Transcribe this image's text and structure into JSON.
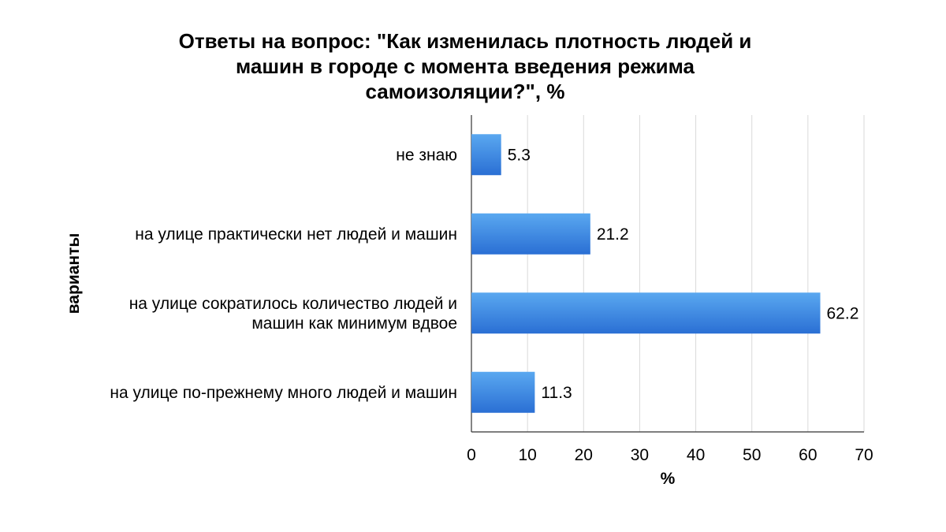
{
  "chart_data": {
    "type": "bar",
    "orientation": "horizontal",
    "title_lines": [
      "Ответы на вопрос: \"Как изменилась плотность людей и",
      "машин  в городе с момента введения режима",
      "самоизоляции?\", %"
    ],
    "categories": [
      [
        "не знаю"
      ],
      [
        "на улице практически нет людей и машин"
      ],
      [
        "на улице сократилось количество людей и",
        "машин как минимум вдвое"
      ],
      [
        "на улице по-прежнему много людей и машин"
      ]
    ],
    "values": [
      5.3,
      21.2,
      62.2,
      11.3
    ],
    "value_labels": [
      "5.3",
      "21.2",
      "62.2",
      "11.3"
    ],
    "xlabel": "%",
    "ylabel": "варианты",
    "xlim": [
      0,
      70
    ],
    "x_ticks": [
      0,
      10,
      20,
      30,
      40,
      50,
      60,
      70
    ],
    "grid": true,
    "colors": {
      "bar_top": "#5aa8f0",
      "bar_bottom": "#2a6fd4",
      "grid": "#d9d9d9",
      "axis": "#333333"
    }
  }
}
